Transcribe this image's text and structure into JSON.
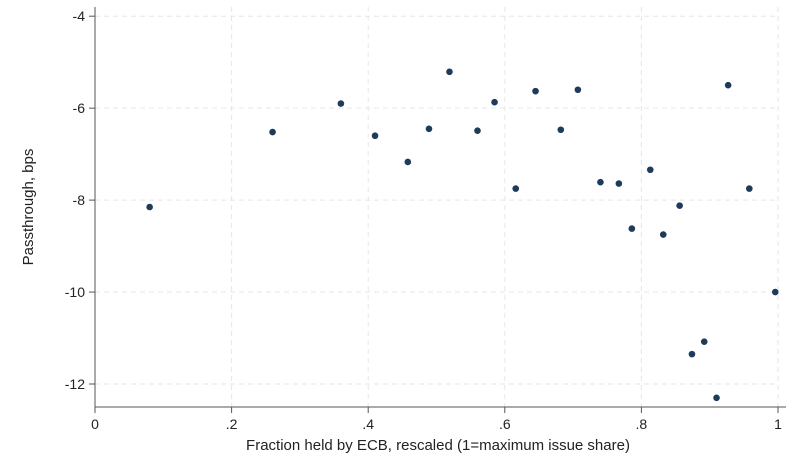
{
  "chart_data": {
    "type": "scatter",
    "title": "",
    "xlabel": "Fraction held by ECB, rescaled (1=maximum issue share)",
    "ylabel": "Passthrough, bps",
    "xlim": [
      0,
      1
    ],
    "ylim": [
      -12.5,
      -3.8
    ],
    "x_ticks": [
      0,
      0.2,
      0.4,
      0.6,
      0.8,
      1
    ],
    "x_tick_labels": [
      "0",
      ".2",
      ".4",
      ".6",
      ".8",
      "1"
    ],
    "y_ticks": [
      -4,
      -6,
      -8,
      -10,
      -12
    ],
    "y_tick_labels": [
      "-4",
      "-6",
      "-8",
      "-10",
      "-12"
    ],
    "grid": true,
    "legend": "none",
    "marker_color": "#1f3b5a",
    "points": [
      {
        "x": 0.08,
        "y": -8.15
      },
      {
        "x": 0.26,
        "y": -6.52
      },
      {
        "x": 0.36,
        "y": -5.9
      },
      {
        "x": 0.41,
        "y": -6.6
      },
      {
        "x": 0.458,
        "y": -7.17
      },
      {
        "x": 0.489,
        "y": -6.45
      },
      {
        "x": 0.519,
        "y": -5.21
      },
      {
        "x": 0.56,
        "y": -6.49
      },
      {
        "x": 0.585,
        "y": -5.87
      },
      {
        "x": 0.616,
        "y": -7.75
      },
      {
        "x": 0.645,
        "y": -5.63
      },
      {
        "x": 0.682,
        "y": -6.47
      },
      {
        "x": 0.707,
        "y": -5.6
      },
      {
        "x": 0.74,
        "y": -7.61
      },
      {
        "x": 0.767,
        "y": -7.64
      },
      {
        "x": 0.786,
        "y": -8.62
      },
      {
        "x": 0.813,
        "y": -7.34
      },
      {
        "x": 0.832,
        "y": -8.75
      },
      {
        "x": 0.856,
        "y": -8.12
      },
      {
        "x": 0.874,
        "y": -11.35
      },
      {
        "x": 0.892,
        "y": -11.08
      },
      {
        "x": 0.91,
        "y": -12.3
      },
      {
        "x": 0.927,
        "y": -5.5
      },
      {
        "x": 0.958,
        "y": -7.75
      },
      {
        "x": 0.996,
        "y": -10.0
      }
    ]
  }
}
